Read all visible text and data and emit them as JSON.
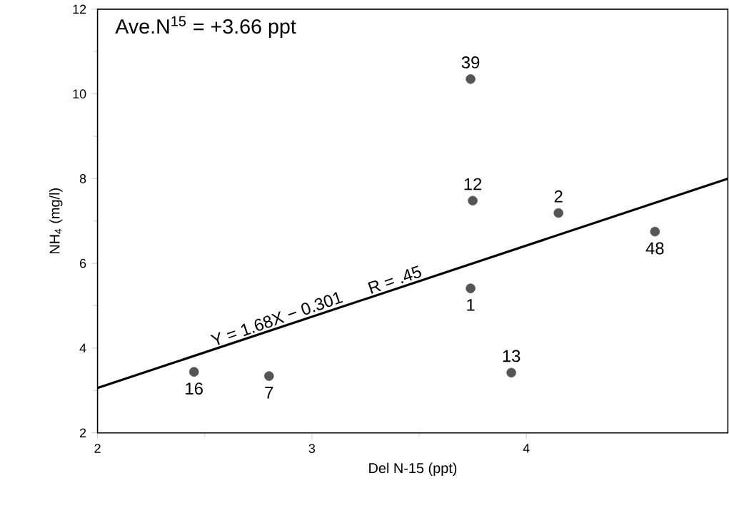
{
  "chart_data": {
    "type": "scatter",
    "xlabel": "Del N-15 (ppt)",
    "ylabel": "NH$_{4}$ (mg/l)",
    "xlim": [
      2,
      4.94
    ],
    "ylim": [
      2,
      12
    ],
    "xticks": [
      2,
      3,
      4
    ],
    "yticks": [
      2,
      4,
      6,
      8,
      10,
      12
    ],
    "grid": false,
    "series": [
      {
        "marker": "circle",
        "color": "#555555",
        "x": [
          2.45,
          2.8,
          3.93,
          3.74,
          3.75,
          4.15,
          4.6,
          3.74
        ],
        "values": [
          3.44,
          3.34,
          3.42,
          5.41,
          7.48,
          7.19,
          6.75,
          10.35
        ]
      },
      {
        "type": "line",
        "color": "#000000",
        "line_style": "solid",
        "marker": "none",
        "x": [
          2,
          4.94
        ],
        "values": [
          3.06,
          8.0
        ]
      }
    ],
    "annotations": [
      "Ave.N$^{15}$ = +3.66 ppt",
      {
        "text": "Y = 1.68X − 0.301",
        "x": 2.85,
        "y": 4.49
      },
      {
        "text": "R = .45",
        "x": 3.4,
        "y": 5.41
      },
      {
        "text": "16",
        "x": 2.45,
        "y": 3.44
      },
      {
        "text": "7",
        "x": 2.8,
        "y": 3.34
      },
      {
        "text": "13",
        "x": 3.93,
        "y": 3.42
      },
      {
        "text": "1",
        "x": 3.74,
        "y": 5.41
      },
      {
        "text": "12",
        "x": 3.75,
        "y": 7.48
      },
      {
        "text": "2",
        "x": 4.15,
        "y": 7.19
      },
      {
        "text": "48",
        "x": 4.6,
        "y": 6.75
      },
      {
        "text": "39",
        "x": 3.74,
        "y": 10.35
      }
    ]
  }
}
